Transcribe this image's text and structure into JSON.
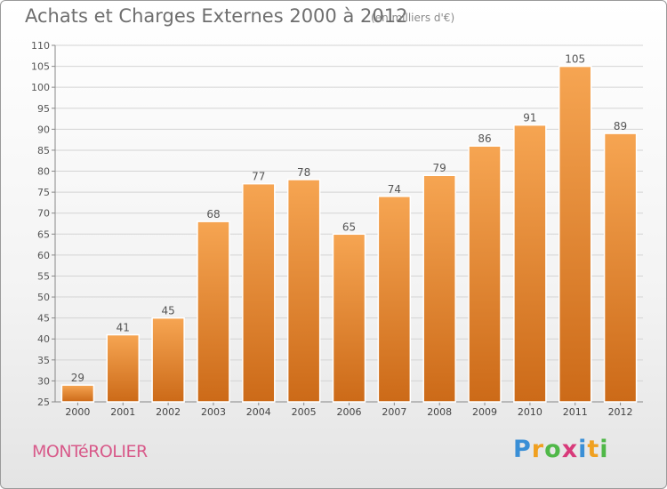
{
  "header": {
    "title": "Achats et Charges Externes 2000 à 2012",
    "unit": "(en milliers d'€)"
  },
  "footer": {
    "city": "MONTéROLIER",
    "logo": "Proxiti"
  },
  "colors": {
    "bar_top": "#f6a552",
    "bar_bottom": "#cc6a18",
    "city": "#d85a8a"
  },
  "chart_data": {
    "type": "bar",
    "title": "Achats et Charges Externes 2000 à 2012",
    "subtitle": "(en milliers d'€)",
    "xlabel": "",
    "ylabel": "",
    "categories": [
      "2000",
      "2001",
      "2002",
      "2003",
      "2004",
      "2005",
      "2006",
      "2007",
      "2008",
      "2009",
      "2010",
      "2011",
      "2012"
    ],
    "values": [
      29,
      41,
      45,
      68,
      77,
      78,
      65,
      74,
      79,
      86,
      91,
      105,
      89
    ],
    "ylim": [
      25,
      110
    ],
    "yticks": [
      25,
      30,
      35,
      40,
      45,
      50,
      55,
      60,
      65,
      70,
      75,
      80,
      85,
      90,
      95,
      100,
      105,
      110
    ],
    "grid": true
  }
}
